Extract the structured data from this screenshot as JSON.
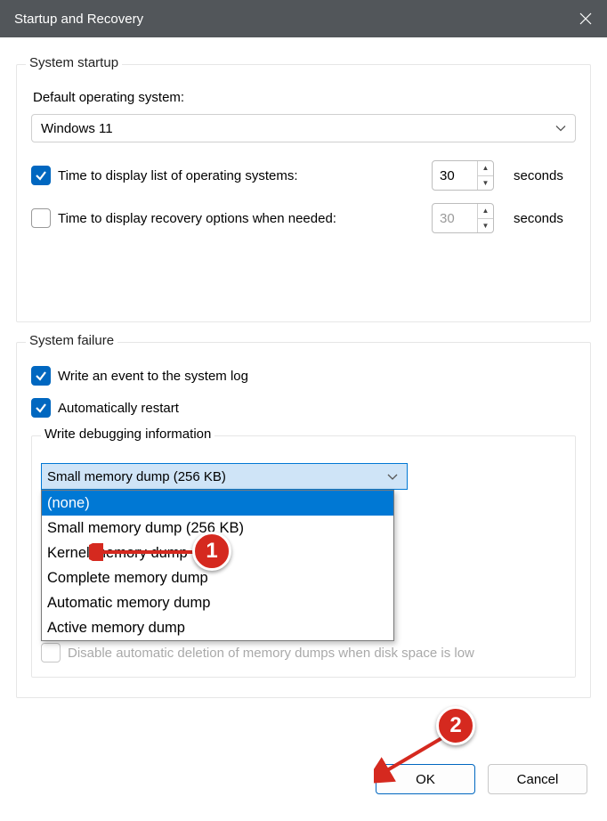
{
  "title": "Startup and Recovery",
  "startup": {
    "legend": "System startup",
    "default_os_label": "Default operating system:",
    "default_os_value": "Windows 11",
    "time_os_list": {
      "checked": true,
      "label": "Time to display list of operating systems:",
      "value": "30",
      "unit": "seconds"
    },
    "time_recovery": {
      "checked": false,
      "label": "Time to display recovery options when needed:",
      "value": "30",
      "unit": "seconds"
    }
  },
  "failure": {
    "legend": "System failure",
    "write_event": {
      "checked": true,
      "label": "Write an event to the system log"
    },
    "auto_restart": {
      "checked": true,
      "label": "Automatically restart"
    },
    "debug": {
      "legend": "Write debugging information",
      "selected": "Small memory dump (256 KB)",
      "options": [
        "(none)",
        "Small memory dump (256 KB)",
        "Kernel memory dump",
        "Complete memory dump",
        "Automatic memory dump",
        "Active memory dump"
      ],
      "highlighted_index": 0
    },
    "disable_auto_delete": {
      "checked": false,
      "label": "Disable automatic deletion of memory dumps when disk space is low"
    }
  },
  "buttons": {
    "ok": "OK",
    "cancel": "Cancel"
  },
  "annotations": {
    "badge1": "1",
    "badge2": "2",
    "colors": {
      "badge": "#d5291f",
      "arrow": "#d5291f",
      "accent": "#0067c0",
      "highlight": "#0078d4"
    }
  }
}
